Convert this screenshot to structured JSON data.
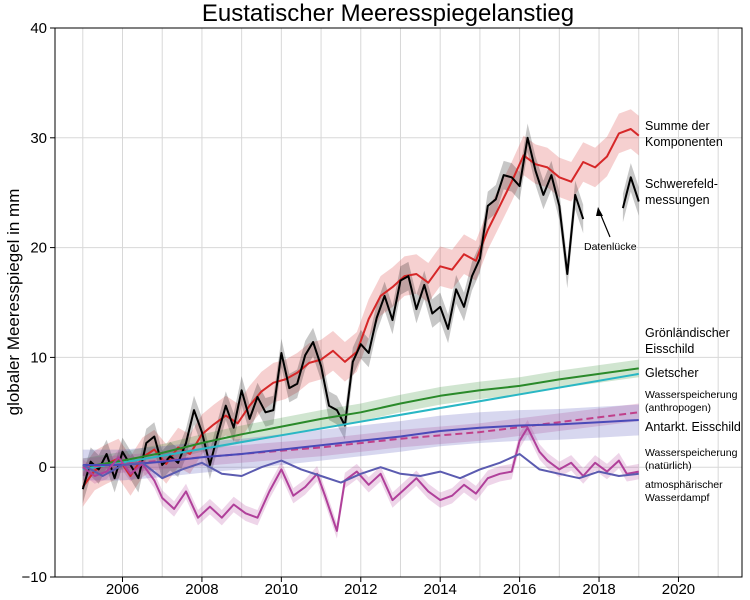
{
  "chart_data": {
    "type": "line",
    "title": "Eustatischer Meeresspiegelanstieg",
    "xlabel": "",
    "ylabel": "globaler Meeresspiegel in mm",
    "xlim": [
      2004.3,
      2021.6
    ],
    "ylim": [
      -10,
      40
    ],
    "x_ticks": [
      "2006",
      "2008",
      "2010",
      "2012",
      "2014",
      "2016",
      "2018",
      "2020"
    ],
    "y_ticks": [
      "−10",
      "0",
      "10",
      "20",
      "30",
      "40"
    ],
    "grid": true,
    "series": [
      {
        "name": "Summe der Komponenten",
        "color": "#d62728",
        "band": 1.8,
        "points": [
          [
            2005.0,
            -1.8
          ],
          [
            2005.3,
            -0.3
          ],
          [
            2005.6,
            0.3
          ],
          [
            2005.9,
            0.8
          ],
          [
            2006.2,
            -0.8
          ],
          [
            2006.5,
            0.9
          ],
          [
            2006.8,
            1.6
          ],
          [
            2007.1,
            0.3
          ],
          [
            2007.4,
            1.8
          ],
          [
            2007.7,
            1.2
          ],
          [
            2008.0,
            3.0
          ],
          [
            2008.3,
            3.9
          ],
          [
            2008.6,
            4.7
          ],
          [
            2008.9,
            4.0
          ],
          [
            2009.2,
            5.6
          ],
          [
            2009.5,
            6.9
          ],
          [
            2009.8,
            7.7
          ],
          [
            2010.1,
            8.0
          ],
          [
            2010.4,
            8.6
          ],
          [
            2010.7,
            9.5
          ],
          [
            2011.0,
            9.8
          ],
          [
            2011.3,
            10.6
          ],
          [
            2011.6,
            9.6
          ],
          [
            2011.9,
            10.5
          ],
          [
            2012.2,
            13.5
          ],
          [
            2012.5,
            15.6
          ],
          [
            2012.8,
            16.4
          ],
          [
            2013.1,
            17.4
          ],
          [
            2013.4,
            17.6
          ],
          [
            2013.7,
            16.8
          ],
          [
            2014.0,
            18.3
          ],
          [
            2014.3,
            18.0
          ],
          [
            2014.6,
            19.4
          ],
          [
            2014.9,
            18.8
          ],
          [
            2015.2,
            21.6
          ],
          [
            2015.5,
            23.8
          ],
          [
            2015.8,
            26.0
          ],
          [
            2016.1,
            28.4
          ],
          [
            2016.4,
            27.6
          ],
          [
            2016.7,
            27.3
          ],
          [
            2017.0,
            26.4
          ],
          [
            2017.3,
            26.0
          ],
          [
            2017.6,
            27.8
          ],
          [
            2017.9,
            27.3
          ],
          [
            2018.2,
            28.3
          ],
          [
            2018.5,
            30.4
          ],
          [
            2018.8,
            30.8
          ],
          [
            2019.0,
            30.2
          ]
        ]
      },
      {
        "name": "Schwerefeldmessungen",
        "color": "#000000",
        "band": 1.3,
        "points": [
          [
            2005.0,
            -2.0
          ],
          [
            2005.2,
            0.5
          ],
          [
            2005.4,
            -0.2
          ],
          [
            2005.6,
            1.2
          ],
          [
            2005.8,
            -1.0
          ],
          [
            2006.0,
            1.4
          ],
          [
            2006.2,
            0.2
          ],
          [
            2006.4,
            -1.0
          ],
          [
            2006.6,
            2.2
          ],
          [
            2006.8,
            2.8
          ],
          [
            2007.0,
            0.2
          ],
          [
            2007.2,
            1.0
          ],
          [
            2007.4,
            0.4
          ],
          [
            2007.6,
            2.2
          ],
          [
            2007.8,
            5.2
          ],
          [
            2008.0,
            3.2
          ],
          [
            2008.2,
            0.2
          ],
          [
            2008.4,
            3.0
          ],
          [
            2008.6,
            5.6
          ],
          [
            2008.8,
            3.6
          ],
          [
            2009.0,
            7.0
          ],
          [
            2009.2,
            4.4
          ],
          [
            2009.4,
            6.4
          ],
          [
            2009.6,
            5.0
          ],
          [
            2009.8,
            5.2
          ],
          [
            2010.0,
            10.4
          ],
          [
            2010.2,
            7.2
          ],
          [
            2010.4,
            7.6
          ],
          [
            2010.6,
            10.2
          ],
          [
            2010.8,
            11.4
          ],
          [
            2011.0,
            9.2
          ],
          [
            2011.2,
            5.6
          ],
          [
            2011.4,
            5.2
          ],
          [
            2011.6,
            3.8
          ],
          [
            2011.8,
            9.6
          ],
          [
            2012.0,
            11.2
          ],
          [
            2012.2,
            10.4
          ],
          [
            2012.4,
            13.6
          ],
          [
            2012.6,
            15.6
          ],
          [
            2012.8,
            13.4
          ],
          [
            2013.0,
            17.0
          ],
          [
            2013.2,
            17.4
          ],
          [
            2013.4,
            14.4
          ],
          [
            2013.6,
            16.6
          ],
          [
            2013.8,
            14.0
          ],
          [
            2014.0,
            14.6
          ],
          [
            2014.2,
            12.6
          ],
          [
            2014.4,
            16.2
          ],
          [
            2014.6,
            14.6
          ],
          [
            2014.8,
            17.4
          ],
          [
            2015.0,
            19.0
          ],
          [
            2015.2,
            23.8
          ],
          [
            2015.4,
            24.4
          ],
          [
            2015.6,
            26.6
          ],
          [
            2015.8,
            26.4
          ],
          [
            2016.0,
            25.6
          ],
          [
            2016.2,
            30.0
          ],
          [
            2016.4,
            27.0
          ],
          [
            2016.6,
            24.8
          ],
          [
            2016.8,
            26.6
          ],
          [
            2017.0,
            23.8
          ],
          [
            2017.2,
            17.6
          ],
          [
            2017.4,
            24.8
          ],
          [
            2017.6,
            22.6
          ],
          null,
          [
            2018.6,
            23.6
          ],
          [
            2018.8,
            26.4
          ],
          [
            2019.0,
            24.2
          ]
        ]
      },
      {
        "name": "Grönländischer Eisschild",
        "color": "#2a8a2a",
        "band": 0.8,
        "points": [
          [
            2005.0,
            0.0
          ],
          [
            2006.0,
            0.6
          ],
          [
            2007.0,
            1.3
          ],
          [
            2008.0,
            2.2
          ],
          [
            2009.0,
            3.0
          ],
          [
            2010.0,
            3.7
          ],
          [
            2011.0,
            4.4
          ],
          [
            2012.0,
            5.0
          ],
          [
            2013.0,
            5.8
          ],
          [
            2014.0,
            6.5
          ],
          [
            2015.0,
            7.0
          ],
          [
            2016.0,
            7.4
          ],
          [
            2017.0,
            8.0
          ],
          [
            2018.0,
            8.5
          ],
          [
            2019.0,
            9.0
          ]
        ]
      },
      {
        "name": "Gletscher",
        "color": "#2ab7c4",
        "band": 0,
        "points": [
          [
            2005.0,
            -0.2
          ],
          [
            2019.0,
            8.5
          ]
        ]
      },
      {
        "name": "Wasserspeicherung (anthropogen)",
        "color": "#c0408a",
        "dashed": true,
        "band": 0.8,
        "points": [
          [
            2005.0,
            0.0
          ],
          [
            2007.0,
            0.6
          ],
          [
            2009.0,
            1.2
          ],
          [
            2011.0,
            1.8
          ],
          [
            2013.0,
            2.6
          ],
          [
            2015.0,
            3.2
          ],
          [
            2017.0,
            4.1
          ],
          [
            2019.0,
            5.0
          ]
        ]
      },
      {
        "name": "Antarkt. Eisschild",
        "color": "#4a4ab8",
        "band": 1.4,
        "points": [
          [
            2005.0,
            0.2
          ],
          [
            2006.0,
            0.2
          ],
          [
            2007.0,
            0.5
          ],
          [
            2008.0,
            0.9
          ],
          [
            2009.0,
            1.2
          ],
          [
            2010.0,
            1.6
          ],
          [
            2011.0,
            2.0
          ],
          [
            2012.0,
            2.4
          ],
          [
            2013.0,
            2.8
          ],
          [
            2014.0,
            3.3
          ],
          [
            2015.0,
            3.6
          ],
          [
            2016.0,
            3.8
          ],
          [
            2017.0,
            3.9
          ],
          [
            2018.0,
            4.1
          ],
          [
            2019.0,
            4.3
          ]
        ]
      },
      {
        "name": "Wasserspeicherung (natürlich)",
        "color": "#b0409a",
        "band": 0.7,
        "points": [
          [
            2005.0,
            0.0
          ],
          [
            2005.3,
            -0.8
          ],
          [
            2005.6,
            -0.4
          ],
          [
            2005.9,
            0.9
          ],
          [
            2006.2,
            -0.6
          ],
          [
            2006.5,
            0.3
          ],
          [
            2006.8,
            -1.2
          ],
          [
            2007.0,
            -2.8
          ],
          [
            2007.3,
            -3.8
          ],
          [
            2007.6,
            -2.2
          ],
          [
            2007.9,
            -4.6
          ],
          [
            2008.2,
            -3.6
          ],
          [
            2008.5,
            -4.6
          ],
          [
            2008.8,
            -3.4
          ],
          [
            2009.1,
            -4.2
          ],
          [
            2009.4,
            -4.6
          ],
          [
            2009.7,
            -2.2
          ],
          [
            2010.0,
            -0.2
          ],
          [
            2010.3,
            -2.6
          ],
          [
            2010.6,
            -1.8
          ],
          [
            2010.9,
            -0.6
          ],
          [
            2011.1,
            -2.6
          ],
          [
            2011.4,
            -5.8
          ],
          [
            2011.6,
            -1.2
          ],
          [
            2011.9,
            -0.4
          ],
          [
            2012.2,
            -1.6
          ],
          [
            2012.5,
            -0.6
          ],
          [
            2012.8,
            -3.0
          ],
          [
            2013.1,
            -2.0
          ],
          [
            2013.4,
            -1.0
          ],
          [
            2013.7,
            -2.2
          ],
          [
            2014.0,
            -3.0
          ],
          [
            2014.3,
            -2.6
          ],
          [
            2014.6,
            -1.6
          ],
          [
            2014.9,
            -2.4
          ],
          [
            2015.2,
            -1.0
          ],
          [
            2015.5,
            -0.6
          ],
          [
            2015.8,
            -0.4
          ],
          [
            2016.0,
            2.4
          ],
          [
            2016.2,
            3.6
          ],
          [
            2016.5,
            1.4
          ],
          [
            2016.7,
            0.6
          ],
          [
            2017.0,
            -0.2
          ],
          [
            2017.3,
            0.4
          ],
          [
            2017.6,
            -0.8
          ],
          [
            2017.9,
            0.4
          ],
          [
            2018.2,
            -0.4
          ],
          [
            2018.5,
            0.6
          ],
          [
            2018.7,
            -0.6
          ],
          [
            2019.0,
            -0.4
          ]
        ]
      },
      {
        "name": "atmosphärischer Wasserdampf",
        "color": "#5b5bb0",
        "band": 0,
        "points": [
          [
            2005.0,
            0.2
          ],
          [
            2005.5,
            -0.8
          ],
          [
            2006.0,
            0.2
          ],
          [
            2006.5,
            0.4
          ],
          [
            2007.0,
            -1.0
          ],
          [
            2007.5,
            -0.2
          ],
          [
            2008.0,
            0.4
          ],
          [
            2008.5,
            -0.6
          ],
          [
            2009.0,
            -0.8
          ],
          [
            2009.5,
            0.0
          ],
          [
            2010.0,
            0.6
          ],
          [
            2010.5,
            -0.2
          ],
          [
            2011.0,
            -0.8
          ],
          [
            2011.5,
            -1.4
          ],
          [
            2012.0,
            -0.6
          ],
          [
            2012.5,
            0.0
          ],
          [
            2013.0,
            -0.6
          ],
          [
            2013.5,
            -0.8
          ],
          [
            2014.0,
            -0.4
          ],
          [
            2014.5,
            -1.0
          ],
          [
            2015.0,
            -0.2
          ],
          [
            2015.5,
            0.4
          ],
          [
            2016.0,
            1.2
          ],
          [
            2016.5,
            -0.2
          ],
          [
            2017.0,
            -0.6
          ],
          [
            2017.5,
            -1.0
          ],
          [
            2018.0,
            -0.4
          ],
          [
            2018.5,
            -0.8
          ],
          [
            2019.0,
            -0.6
          ]
        ]
      }
    ],
    "legend_labels": [
      {
        "key": "summe",
        "lines": [
          "Summe der",
          "Komponenten"
        ]
      },
      {
        "key": "schwerefeld",
        "lines": [
          "Schwerefeld-",
          "messungen"
        ]
      },
      {
        "key": "groenland",
        "lines": [
          "Grönländischer",
          "Eisschild"
        ]
      },
      {
        "key": "gletscher",
        "lines": [
          "Gletscher"
        ]
      },
      {
        "key": "anthro",
        "lines": [
          "Wasserspeicherung",
          "(anthropogen)"
        ]
      },
      {
        "key": "antarkt",
        "lines": [
          "Antarkt. Eisschild"
        ]
      },
      {
        "key": "natuerlich",
        "lines": [
          "Wasserspeicherung",
          "(natürlich)"
        ]
      },
      {
        "key": "atmos",
        "lines": [
          "atmosphärischer",
          "Wasserdampf"
        ]
      }
    ],
    "annotations": [
      {
        "text": "Datenlücke",
        "arrow_to": [
          2018.0,
          23.8
        ]
      }
    ]
  }
}
